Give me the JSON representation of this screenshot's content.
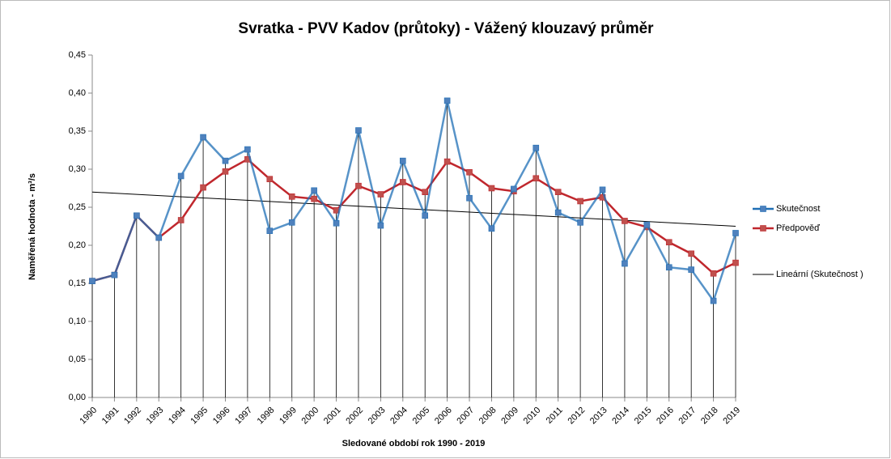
{
  "chart_data": {
    "type": "line",
    "title": "Svratka - PVV Kadov (průtoky) - Vážený klouzavý průměr",
    "x_label": "Sledované období rok 1990 - 2019",
    "y_label": "Naměřená hodnota - m³/s",
    "categories": [
      "1990",
      "1991",
      "1992",
      "1993",
      "1994",
      "1995",
      "1996",
      "1997",
      "1998",
      "1999",
      "2000",
      "2001",
      "2002",
      "2003",
      "2004",
      "2005",
      "2006",
      "2007",
      "2008",
      "2009",
      "2010",
      "2011",
      "2012",
      "2013",
      "2014",
      "2015",
      "2016",
      "2017",
      "2018",
      "2019"
    ],
    "series": [
      {
        "name": "Skutečnost",
        "color": "#1f6fb5",
        "marker_color": "#4f81bd",
        "values": [
          0.153,
          0.161,
          0.239,
          0.21,
          0.291,
          0.342,
          0.311,
          0.326,
          0.219,
          0.23,
          0.272,
          0.229,
          0.351,
          0.226,
          0.311,
          0.239,
          0.39,
          0.262,
          0.222,
          0.274,
          0.328,
          0.243,
          0.23,
          0.273,
          0.176,
          0.227,
          0.171,
          0.168,
          0.127,
          0.216
        ]
      },
      {
        "name": "Předpověď",
        "color": "#c0272d",
        "marker_color": "#c0504d",
        "values": [
          0.153,
          0.161,
          0.239,
          0.21,
          0.233,
          0.276,
          0.297,
          0.313,
          0.287,
          0.264,
          0.261,
          0.246,
          0.278,
          0.267,
          0.283,
          0.27,
          0.31,
          0.296,
          0.275,
          0.271,
          0.288,
          0.27,
          0.258,
          0.263,
          0.232,
          0.224,
          0.204,
          0.189,
          0.163,
          0.177
        ]
      }
    ],
    "trendline": {
      "name": "Lineární (Skutečnost )",
      "color": "#000000",
      "values": [
        0.27,
        0.225
      ]
    },
    "ylim": [
      0,
      0.45
    ],
    "yticks": [
      {
        "value": 0,
        "label": "0,00"
      },
      {
        "value": 0.05,
        "label": "0,05"
      },
      {
        "value": 0.1,
        "label": "0,10"
      },
      {
        "value": 0.15,
        "label": "0,15"
      },
      {
        "value": 0.2,
        "label": "0,20"
      },
      {
        "value": 0.25,
        "label": "0,25"
      },
      {
        "value": 0.3,
        "label": "0,30"
      },
      {
        "value": 0.35,
        "label": "0,35"
      },
      {
        "value": 0.4,
        "label": "0,40"
      },
      {
        "value": 0.45,
        "label": "0,45"
      }
    ],
    "drop_lines": true,
    "legend": "right"
  }
}
